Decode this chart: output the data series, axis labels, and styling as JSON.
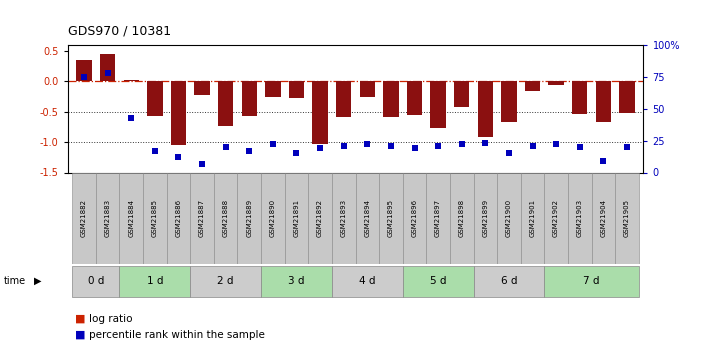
{
  "title": "GDS970 / 10381",
  "samples": [
    "GSM21882",
    "GSM21883",
    "GSM21884",
    "GSM21885",
    "GSM21886",
    "GSM21887",
    "GSM21888",
    "GSM21889",
    "GSM21890",
    "GSM21891",
    "GSM21892",
    "GSM21893",
    "GSM21894",
    "GSM21895",
    "GSM21896",
    "GSM21897",
    "GSM21898",
    "GSM21899",
    "GSM21900",
    "GSM21901",
    "GSM21902",
    "GSM21903",
    "GSM21904",
    "GSM21905"
  ],
  "log_ratio": [
    0.35,
    0.45,
    0.02,
    -0.57,
    -1.05,
    -0.22,
    -0.73,
    -0.57,
    -0.26,
    -0.27,
    -1.03,
    -0.58,
    -0.26,
    -0.59,
    -0.56,
    -0.77,
    -0.42,
    -0.92,
    -0.67,
    -0.16,
    -0.06,
    -0.54,
    -0.67,
    -0.52
  ],
  "percentile_rank": [
    75,
    78,
    43,
    17,
    12,
    7,
    20,
    17,
    22,
    15,
    19,
    21,
    22,
    21,
    19,
    21,
    22,
    23,
    15,
    21,
    22,
    20,
    9,
    20
  ],
  "time_groups": [
    {
      "label": "0 d",
      "start": 0,
      "end": 2,
      "color": "#cccccc"
    },
    {
      "label": "1 d",
      "start": 2,
      "end": 5,
      "color": "#aaddaa"
    },
    {
      "label": "2 d",
      "start": 5,
      "end": 8,
      "color": "#cccccc"
    },
    {
      "label": "3 d",
      "start": 8,
      "end": 11,
      "color": "#aaddaa"
    },
    {
      "label": "4 d",
      "start": 11,
      "end": 14,
      "color": "#cccccc"
    },
    {
      "label": "5 d",
      "start": 14,
      "end": 17,
      "color": "#aaddaa"
    },
    {
      "label": "6 d",
      "start": 17,
      "end": 20,
      "color": "#cccccc"
    },
    {
      "label": "7 d",
      "start": 20,
      "end": 24,
      "color": "#aaddaa"
    }
  ],
  "sample_box_color": "#c8c8c8",
  "ylim_left": [
    -1.5,
    0.6
  ],
  "ylim_right": [
    0,
    100
  ],
  "yticks_left": [
    0.5,
    0.0,
    -0.5,
    -1.0,
    -1.5
  ],
  "yticks_right": [
    0,
    25,
    50,
    75,
    100
  ],
  "bar_color": "#8B1010",
  "dot_color": "#0000BB",
  "hline0_color": "#CC2200",
  "dotline_color": "#333333",
  "legend_bar_color": "#CC2200",
  "legend_dot_color": "#0000BB"
}
